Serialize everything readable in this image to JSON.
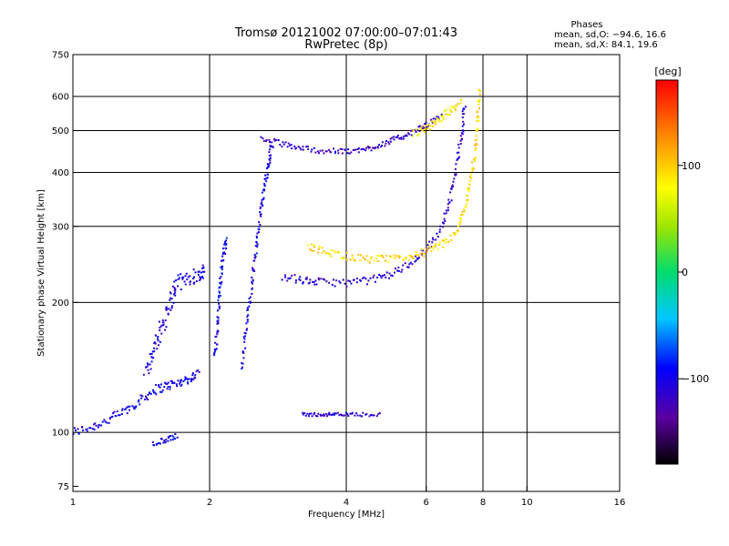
{
  "chart_data": {
    "type": "scatter",
    "title": "Tromsø 20121002 07:00:00–07:01:43",
    "subtitle": "RwPretec (8p)",
    "xlabel": "Frequency [MHz]",
    "ylabel": "Stationary phase Virtual Height [km]",
    "xscale": "log",
    "yscale": "log",
    "xlim": [
      1,
      16
    ],
    "ylim": [
      73,
      750
    ],
    "xticks": [
      1,
      2,
      4,
      6,
      8,
      10,
      16
    ],
    "xtick_labels": [
      "1",
      "2",
      "4",
      "6",
      "8",
      "10",
      "16"
    ],
    "yticks": [
      75,
      100,
      200,
      300,
      400,
      500,
      600,
      750
    ],
    "ytick_labels": [
      "75",
      "100",
      "200",
      "300",
      "400",
      "500",
      "600",
      "750"
    ],
    "grid": true,
    "stats": {
      "heading": "Phases",
      "line_o": "mean, sd,O: −94.6, 16.6",
      "line_x": "mean, sd,X:  84.1, 19.6"
    },
    "colorbar": {
      "label": "[deg]",
      "range": [
        -180,
        180
      ],
      "ticks": [
        100,
        0,
        -100
      ],
      "tick_labels": [
        "100",
        "0",
        "−100"
      ]
    },
    "traces": [
      {
        "id": "o-lower",
        "phase": -100,
        "spread": 0.025,
        "points": [
          [
            1.0,
            100
          ],
          [
            1.1,
            103
          ],
          [
            1.2,
            107
          ],
          [
            1.3,
            112
          ],
          [
            1.4,
            118
          ],
          [
            1.5,
            125
          ],
          [
            1.6,
            128
          ],
          [
            1.7,
            130
          ],
          [
            1.8,
            133
          ],
          [
            1.9,
            137
          ]
        ]
      },
      {
        "id": "o-lower-b",
        "phase": -105,
        "spread": 0.04,
        "points": [
          [
            1.45,
            140
          ],
          [
            1.5,
            152
          ],
          [
            1.55,
            168
          ],
          [
            1.6,
            185
          ],
          [
            1.65,
            205
          ],
          [
            1.7,
            222
          ],
          [
            1.8,
            228
          ],
          [
            1.9,
            232
          ],
          [
            1.95,
            238
          ]
        ]
      },
      {
        "id": "o-column-2.1",
        "phase": -95,
        "spread": 0.02,
        "points": [
          [
            2.05,
            150
          ],
          [
            2.08,
            170
          ],
          [
            2.1,
            200
          ],
          [
            2.12,
            230
          ],
          [
            2.15,
            260
          ],
          [
            2.18,
            280
          ]
        ]
      },
      {
        "id": "o-column-2.5",
        "phase": -100,
        "spread": 0.02,
        "points": [
          [
            2.35,
            140
          ],
          [
            2.4,
            170
          ],
          [
            2.45,
            200
          ],
          [
            2.5,
            240
          ],
          [
            2.55,
            280
          ],
          [
            2.6,
            330
          ],
          [
            2.65,
            380
          ],
          [
            2.7,
            420
          ],
          [
            2.75,
            470
          ]
        ]
      },
      {
        "id": "o-f1",
        "phase": -110,
        "spread": 0.02,
        "points": [
          [
            2.9,
            230
          ],
          [
            3.2,
            225
          ],
          [
            3.5,
            223
          ],
          [
            4.0,
            222
          ],
          [
            4.5,
            225
          ],
          [
            5.0,
            232
          ],
          [
            5.5,
            245
          ],
          [
            6.0,
            265
          ],
          [
            6.5,
            300
          ],
          [
            6.8,
            350
          ],
          [
            7.0,
            420
          ],
          [
            7.2,
            500
          ],
          [
            7.3,
            580
          ]
        ]
      },
      {
        "id": "o-f2",
        "phase": -115,
        "spread": 0.015,
        "points": [
          [
            2.6,
            480
          ],
          [
            2.9,
            465
          ],
          [
            3.2,
            455
          ],
          [
            3.6,
            448
          ],
          [
            4.0,
            447
          ],
          [
            4.4,
            452
          ],
          [
            4.8,
            465
          ],
          [
            5.2,
            480
          ],
          [
            5.6,
            495
          ],
          [
            6.0,
            515
          ],
          [
            6.5,
            540
          ]
        ]
      },
      {
        "id": "x-f1",
        "phase": 95,
        "spread": 0.02,
        "points": [
          [
            3.3,
            270
          ],
          [
            3.6,
            262
          ],
          [
            4.0,
            256
          ],
          [
            4.5,
            252
          ],
          [
            5.0,
            252
          ],
          [
            5.5,
            255
          ],
          [
            6.0,
            262
          ],
          [
            6.5,
            272
          ],
          [
            7.0,
            290
          ],
          [
            7.3,
            330
          ],
          [
            7.5,
            380
          ],
          [
            7.7,
            450
          ],
          [
            7.8,
            530
          ],
          [
            7.85,
            620
          ]
        ]
      },
      {
        "id": "x-f2",
        "phase": 90,
        "spread": 0.02,
        "points": [
          [
            5.6,
            490
          ],
          [
            6.0,
            505
          ],
          [
            6.4,
            530
          ],
          [
            6.8,
            560
          ],
          [
            7.2,
            580
          ]
        ]
      },
      {
        "id": "o-sporadic",
        "phase": -110,
        "spread": 0.01,
        "points": [
          [
            3.2,
            110
          ],
          [
            3.5,
            110
          ],
          [
            3.8,
            110
          ],
          [
            4.2,
            110
          ],
          [
            4.8,
            110
          ]
        ]
      },
      {
        "id": "o-low",
        "phase": -100,
        "spread": 0.015,
        "points": [
          [
            1.5,
            94
          ],
          [
            1.6,
            96
          ],
          [
            1.7,
            98
          ]
        ]
      }
    ]
  }
}
